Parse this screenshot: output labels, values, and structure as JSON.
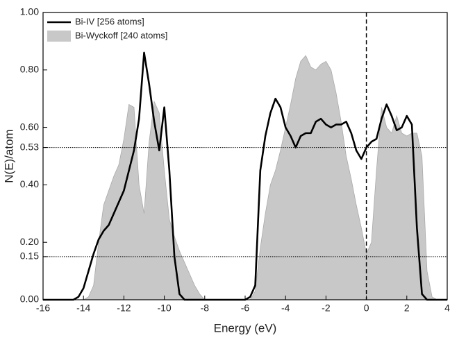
{
  "chart_data": {
    "type": "line-area",
    "xlabel": "Energy (eV)",
    "ylabel": "N(E)/atom",
    "x": [
      -16,
      -15.75,
      -15.5,
      -15.25,
      -15,
      -14.75,
      -14.5,
      -14.25,
      -14,
      -13.75,
      -13.5,
      -13.25,
      -13,
      -12.75,
      -12.5,
      -12.25,
      -12,
      -11.75,
      -11.5,
      -11.25,
      -11,
      -10.75,
      -10.5,
      -10.25,
      -10,
      -9.75,
      -9.5,
      -9.25,
      -9,
      -8.75,
      -8.5,
      -8.25,
      -8,
      -7.75,
      -7.5,
      -7.25,
      -7,
      -6.75,
      -6.5,
      -6.25,
      -6,
      -5.75,
      -5.5,
      -5.25,
      -5,
      -4.75,
      -4.5,
      -4.25,
      -4,
      -3.75,
      -3.5,
      -3.25,
      -3,
      -2.75,
      -2.5,
      -2.25,
      -2,
      -1.75,
      -1.5,
      -1.25,
      -1,
      -0.75,
      -0.5,
      -0.25,
      0,
      0.25,
      0.5,
      0.75,
      1,
      1.25,
      1.5,
      1.75,
      2,
      2.25,
      2.5,
      2.75,
      3,
      3.25,
      3.5,
      3.75,
      4
    ],
    "series": [
      {
        "name": "Bi-Wyckoff [240 atoms]",
        "style": "area",
        "color": "#c8c8c8",
        "values": [
          0,
          0,
          0,
          0,
          0,
          0,
          0,
          0,
          0,
          0.01,
          0.05,
          0.2,
          0.33,
          0.38,
          0.43,
          0.47,
          0.56,
          0.68,
          0.67,
          0.4,
          0.3,
          0.55,
          0.69,
          0.65,
          0.45,
          0.28,
          0.22,
          0.17,
          0.13,
          0.09,
          0.05,
          0.02,
          0,
          0,
          0,
          0,
          0,
          0,
          0,
          0,
          0,
          0,
          0.03,
          0.18,
          0.3,
          0.4,
          0.45,
          0.52,
          0.6,
          0.68,
          0.77,
          0.83,
          0.85,
          0.81,
          0.8,
          0.82,
          0.83,
          0.8,
          0.72,
          0.62,
          0.5,
          0.42,
          0.33,
          0.25,
          0.16,
          0.2,
          0.45,
          0.67,
          0.6,
          0.58,
          0.64,
          0.58,
          0.57,
          0.58,
          0.58,
          0.5,
          0.1,
          0.01,
          0,
          0,
          0
        ]
      },
      {
        "name": "Bi-IV [256 atoms]",
        "style": "line",
        "color": "#000000",
        "values": [
          0,
          0,
          0,
          0,
          0,
          0,
          0,
          0.01,
          0.04,
          0.1,
          0.16,
          0.21,
          0.24,
          0.26,
          0.3,
          0.34,
          0.38,
          0.45,
          0.52,
          0.63,
          0.86,
          0.75,
          0.62,
          0.52,
          0.67,
          0.45,
          0.15,
          0.02,
          0,
          0,
          0,
          0,
          0,
          0,
          0,
          0,
          0,
          0,
          0,
          0,
          0,
          0.01,
          0.05,
          0.45,
          0.57,
          0.65,
          0.7,
          0.67,
          0.6,
          0.57,
          0.53,
          0.57,
          0.58,
          0.58,
          0.62,
          0.63,
          0.61,
          0.6,
          0.61,
          0.61,
          0.62,
          0.58,
          0.52,
          0.49,
          0.53,
          0.55,
          0.56,
          0.63,
          0.68,
          0.64,
          0.59,
          0.6,
          0.64,
          0.61,
          0.25,
          0.02,
          0,
          0,
          0,
          0,
          0
        ]
      }
    ],
    "xlim": [
      -16,
      4
    ],
    "xticks": [
      -16,
      -14,
      -12,
      -10,
      -8,
      -6,
      -4,
      -2,
      0,
      2,
      4
    ],
    "ylim": [
      0,
      1
    ],
    "yticks": [
      {
        "value": 0,
        "label": "0.00"
      },
      {
        "value": 0.15,
        "label": "0.15"
      },
      {
        "value": 0.2,
        "label": "0.20"
      },
      {
        "value": 0.4,
        "label": "0.40"
      },
      {
        "value": 0.53,
        "label": "0.53"
      },
      {
        "value": 0.6,
        "label": "0.60"
      },
      {
        "value": 0.8,
        "label": "0.80"
      },
      {
        "value": 1,
        "label": "1.00"
      }
    ],
    "hlines": [
      0.53,
      0.15
    ],
    "vlines": [
      0
    ],
    "legend": "upper left"
  }
}
